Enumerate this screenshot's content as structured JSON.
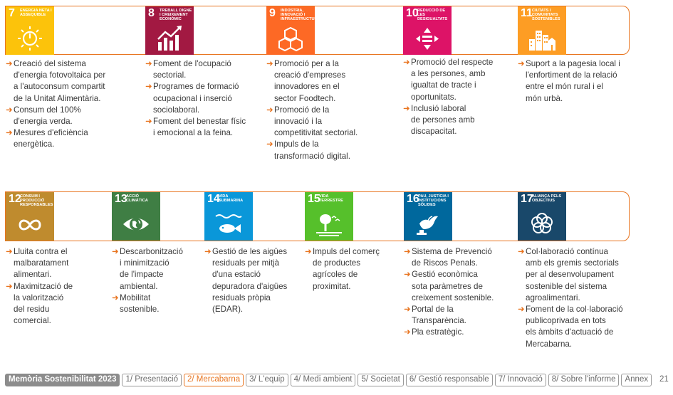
{
  "colors": {
    "accent": "#e8741f",
    "text": "#3a3a3a",
    "footer_gray": "#8c8c8c"
  },
  "goals_row1": [
    {
      "num": "7",
      "title": "Energia neta i assequible",
      "color": "#fcc30b",
      "icon": "sun-power-icon",
      "bullets": [
        [
          "Creació del sistema",
          "d'energia fotovoltaica per",
          "a l'autoconsum compartit",
          "de la Unitat Alimentària."
        ],
        [
          "Consum del 100%",
          "d'energia verda."
        ],
        [
          "Mesures d'eficiència",
          "energètica."
        ]
      ]
    },
    {
      "num": "8",
      "title": "Treball digne i creixement econòmic",
      "color": "#a21942",
      "icon": "growth-chart-icon",
      "bullets": [
        [
          "Foment de l'ocupació",
          "sectorial."
        ],
        [
          "Programes de formació",
          "ocupacional i inserció",
          "sociolaboral."
        ],
        [
          "Foment del benestar físic",
          "i emocional a la feina."
        ]
      ]
    },
    {
      "num": "9",
      "title": "Indústria, innovació i infraestructures",
      "color": "#fd6925",
      "icon": "cubes-icon",
      "bullets": [
        [
          "Promoció per a la",
          "creació d'empreses",
          "innovadores en el",
          "sector Foodtech."
        ],
        [
          "Promoció de la",
          "innovació i la",
          "competitivitat sectorial."
        ],
        [
          "Impuls de la",
          "transformació digital."
        ]
      ]
    },
    {
      "num": "10",
      "title": "Reducció de les desigualtats",
      "color": "#dd1367",
      "icon": "equality-icon",
      "bullets": [
        [
          "Promoció del respecte",
          "a les persones, amb",
          "igualtat de tracte i",
          "oportunitats."
        ],
        [
          "Inclusió laboral",
          "de persones amb",
          "discapacitat."
        ]
      ]
    },
    {
      "num": "11",
      "title": "Ciutats i comunitats sostenibles",
      "color": "#fd9d24",
      "icon": "city-buildings-icon",
      "bullets": [
        [
          "Suport a la pagesia local i",
          "l'enfortiment de la relació",
          "entre el món rural i el",
          "món urbà."
        ]
      ]
    }
  ],
  "goals_row2": [
    {
      "num": "12",
      "title": "Consum i producció responsables",
      "color": "#bf8b2e",
      "icon": "infinity-icon",
      "bullets": [
        [
          "Lluita contra el",
          "malbaratament",
          "alimentari."
        ],
        [
          "Maximització de",
          "la valorització",
          "del residu",
          "comercial."
        ]
      ]
    },
    {
      "num": "13",
      "title": "Acció climàtica",
      "color": "#3f7e44",
      "icon": "earth-eye-icon",
      "bullets": [
        [
          "Descarbonització",
          "i minimització",
          "de l'impacte",
          "ambiental."
        ],
        [
          "Mobilitat",
          "sostenible."
        ]
      ]
    },
    {
      "num": "14",
      "title": "Vida submarina",
      "color": "#0a97d9",
      "icon": "fish-waves-icon",
      "bullets": [
        [
          "Gestió de les aigües",
          "residuals per mitjà",
          "d'una estació",
          "depuradora d'aigües",
          "residuals pròpia",
          "(EDAR)."
        ]
      ]
    },
    {
      "num": "15",
      "title": "Vida terrestre",
      "color": "#56c02b",
      "icon": "tree-birds-icon",
      "bullets": [
        [
          "Impuls del comerç",
          "de productes",
          "agrícoles de",
          "proximitat."
        ]
      ]
    },
    {
      "num": "16",
      "title": "Pau, justícia i institucions sòlides",
      "color": "#00689d",
      "icon": "dove-gavel-icon",
      "bullets": [
        [
          "Sistema de Prevenció",
          "de Riscos Penals."
        ],
        [
          "Gestió econòmica",
          "sota paràmetres de",
          "creixement sostenible."
        ],
        [
          "Portal de la",
          "Transparència."
        ],
        [
          "Pla estratègic."
        ]
      ]
    },
    {
      "num": "17",
      "title": "Aliança pels objectius",
      "color": "#19486a",
      "icon": "rings-flower-icon",
      "bullets": [
        [
          "Col·laboració contínua",
          "amb els gremis sectorials",
          "per al desenvolupament",
          "sostenible del sistema",
          "agroalimentari."
        ],
        [
          "Foment de la col·laboració",
          "publicoprivada en tots",
          "els àmbits d'actuació de",
          "Mercabarna."
        ]
      ]
    }
  ],
  "footer": {
    "brand": "Memòria Sostenibilitat 2023",
    "tabs": [
      "1/ Presentació",
      "2/ Mercabarna",
      "3/ L'equip",
      "4/ Medi ambient",
      "5/ Societat",
      "6/ Gestió responsable",
      "7/ Innovació",
      "8/ Sobre l'informe",
      "Annex"
    ],
    "active_tab": "2/ Mercabarna",
    "page": "21"
  }
}
